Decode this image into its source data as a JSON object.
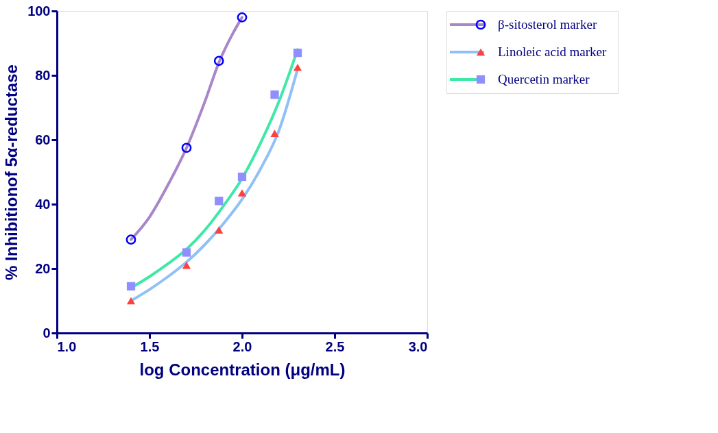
{
  "chart_data": {
    "type": "scatter",
    "xlabel": "log Concentration (μg/mL)",
    "ylabel": "% Inhibitionof 5α-reductase",
    "xlim": [
      1.0,
      3.0
    ],
    "xticks": [
      {
        "value": 1.0,
        "label": "1.0"
      },
      1.5,
      {
        "value": 2.0,
        "label": "2.0"
      },
      2.5,
      {
        "value": 3.0,
        "label": "3.0"
      }
    ],
    "ylim": [
      0,
      100
    ],
    "yticks": [
      0,
      20,
      40,
      60,
      80,
      100
    ],
    "grid": false,
    "legend": "right",
    "series": [
      {
        "name": "β-sitosterol marker",
        "marker": "circle",
        "color": "#0000ff",
        "x": [
          1.4,
          1.7,
          1.875,
          2.0
        ],
        "values": [
          29,
          57.5,
          84.5,
          98
        ]
      },
      {
        "type": "line",
        "line_style": "solid",
        "color": "#a886c8",
        "x": [
          1.4,
          1.5,
          1.6,
          1.7,
          1.8,
          1.875,
          1.95,
          2.0
        ],
        "values": [
          29,
          36,
          46,
          57.5,
          72,
          84,
          93,
          98
        ]
      },
      {
        "name": "Linoleic acid marker",
        "marker": "triangle",
        "color": "#ff4040",
        "x": [
          1.4,
          1.7,
          1.875,
          2.0,
          2.176,
          2.3
        ],
        "values": [
          10,
          21,
          32,
          43.5,
          62,
          82.5
        ]
      },
      {
        "type": "line",
        "line_style": "solid",
        "color": "#90c0f8",
        "x": [
          1.4,
          1.5,
          1.6,
          1.7,
          1.8,
          1.9,
          2.0,
          2.1,
          2.2,
          2.3
        ],
        "values": [
          10,
          13.5,
          17.5,
          22,
          27.5,
          34,
          41.5,
          51,
          63,
          82
        ]
      },
      {
        "name": "Quercetin marker",
        "marker": "square",
        "color": "#8f8fff",
        "x": [
          1.4,
          1.7,
          1.875,
          2.0,
          2.176,
          2.3
        ],
        "values": [
          14.5,
          25,
          41,
          48.5,
          74,
          87
        ]
      },
      {
        "type": "line",
        "line_style": "solid",
        "color": "#40e8a8",
        "x": [
          1.4,
          1.5,
          1.6,
          1.7,
          1.8,
          1.9,
          2.0,
          2.1,
          2.2,
          2.3
        ],
        "values": [
          14,
          17.5,
          21.5,
          26,
          32,
          39.5,
          48,
          59,
          72,
          88
        ]
      }
    ]
  }
}
